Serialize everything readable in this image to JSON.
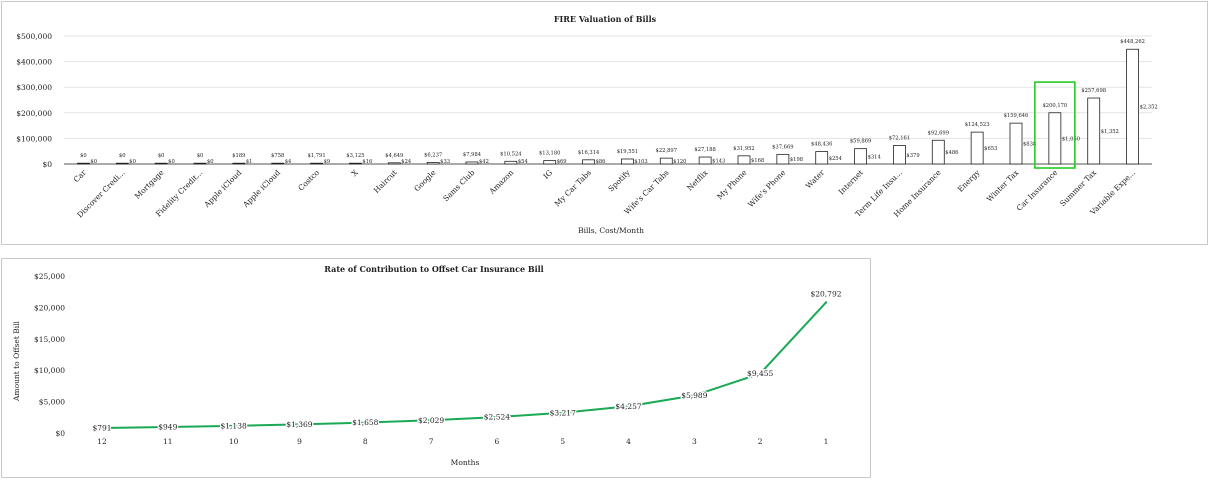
{
  "charts": [
    {
      "id": "fire-valuation",
      "chart_data": {
        "type": "bar",
        "title": "FIRE Valuation of Bills",
        "xlabel": "Bills, Cost/Month",
        "ylabel": "",
        "ylim": [
          0,
          500000
        ],
        "yticks": [
          "$0",
          "$100,000",
          "$200,000",
          "$300,000",
          "$400,000",
          "$500,000"
        ],
        "ytick_values": [
          0,
          100000,
          200000,
          300000,
          400000,
          500000
        ],
        "categories": [
          "Car",
          "Discover Credi...",
          "Mortgage",
          "Fidelity Credit...",
          "Apple iCloud",
          "Apple iCloud",
          "Costco",
          "X",
          "Haircut",
          "Google",
          "Sams Club",
          "Amazon",
          "IG",
          "My Car Tabs",
          "Spotify",
          "Wife's Car Tabs",
          "Netflix",
          "My Phone",
          "Wife's Phone",
          "Water",
          "Internet",
          "Term Life Insu...",
          "Home Insurance",
          "Energy",
          "Winter Tax",
          "Car Insurance",
          "Summer Tax",
          "Variable Expe..."
        ],
        "values": [
          0,
          0,
          0,
          0,
          189,
          758,
          1791,
          3125,
          4649,
          6237,
          7984,
          10524,
          13180,
          16314,
          19551,
          22897,
          27188,
          31952,
          37669,
          48436,
          59869,
          72161,
          92699,
          124523,
          159646,
          200170,
          257698,
          448262
        ],
        "value_labels": [
          "$0",
          "$0",
          "$0",
          "$0",
          "$189",
          "$758",
          "$1,791",
          "$3,125",
          "$4,649",
          "$6,237",
          "$7,984",
          "$10,524",
          "$13,180",
          "$16,314",
          "$19,551",
          "$22,897",
          "$27,188",
          "$31,952",
          "$37,669",
          "$48,436",
          "$59,869",
          "$72,161",
          "$92,699",
          "$124,523",
          "$159,646",
          "$200,170",
          "$257,698",
          "$448,262"
        ],
        "monthly_costs": [
          0,
          0,
          0,
          0,
          1,
          4,
          9,
          16,
          24,
          33,
          42,
          54,
          69,
          86,
          103,
          120,
          143,
          168,
          198,
          254,
          314,
          379,
          486,
          653,
          838,
          1050,
          1352,
          2352
        ],
        "monthly_labels": [
          "$0",
          "$0",
          "$0",
          "$0",
          "$1",
          "$4",
          "$9",
          "$16",
          "$24",
          "$33",
          "$42",
          "$54",
          "$69",
          "$86",
          "$103",
          "$120",
          "$143",
          "$168",
          "$198",
          "$254",
          "$314",
          "$379",
          "$486",
          "$653",
          "$838",
          "$1,050",
          "$1,352",
          "$2,352"
        ],
        "highlighted_category": "Car Insurance",
        "bar_fill": "#ffffff",
        "bar_stroke": "#222222",
        "highlight_color": "#22cc22",
        "grid": true
      }
    },
    {
      "id": "rate-of-contribution",
      "chart_data": {
        "type": "line",
        "title": "Rate of Contribution to Offset Car Insurance Bill",
        "xlabel": "Months",
        "ylabel": "Amount to Offset Bill",
        "ylim": [
          0,
          25000
        ],
        "yticks": [
          "$0",
          "$5,000",
          "$10,000",
          "$15,000",
          "$20,000",
          "$25,000"
        ],
        "ytick_values": [
          0,
          5000,
          10000,
          15000,
          20000,
          25000
        ],
        "categories": [
          "12",
          "11",
          "10",
          "9",
          "8",
          "7",
          "6",
          "5",
          "4",
          "3",
          "2",
          "1"
        ],
        "series": [
          {
            "values": [
              791,
              949,
              1138,
              1369,
              1658,
              2029,
              2524,
              3217,
              4257,
              5989,
              9455,
              20792
            ],
            "labels": [
              "$791",
              "$949",
              "$1,138",
              "$1,369",
              "$1,658",
              "$2,029",
              "$2,524",
              "$3,217",
              "$4,257",
              "$5,989",
              "$9,455",
              "$20,792"
            ],
            "color": "#1aaa55"
          }
        ],
        "grid": false
      }
    }
  ]
}
